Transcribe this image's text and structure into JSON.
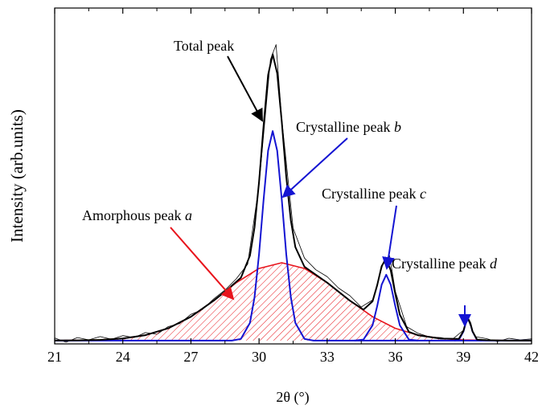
{
  "chart_data": {
    "type": "line",
    "xlabel": "2θ (°)",
    "ylabel": "Intensity (arb.units)",
    "xlim": [
      21,
      42
    ],
    "xticks": [
      21,
      24,
      27,
      30,
      33,
      36,
      39,
      42
    ],
    "ylim": [
      -1,
      100
    ],
    "annotations": [
      {
        "text": "Total peak"
      },
      {
        "text": "Crystalline peak",
        "letter": "b"
      },
      {
        "text": "Crystalline peak",
        "letter": "c"
      },
      {
        "text": "Crystalline peak",
        "letter": "d"
      },
      {
        "text": "Amorphous peak",
        "letter": "a"
      }
    ],
    "series": [
      {
        "color": "#000000",
        "width": 0.8,
        "x": [
          21,
          21.5,
          22,
          22.5,
          23,
          23.5,
          24,
          24.5,
          25,
          25.5,
          26,
          26.5,
          27,
          27.5,
          28,
          28.5,
          29,
          29.5,
          30,
          30.5,
          30.75,
          31,
          31.5,
          32,
          32.5,
          33,
          33.5,
          34,
          34.5,
          35,
          35.5,
          35.75,
          36,
          36.5,
          37,
          37.5,
          38,
          38.5,
          39,
          39.2,
          39.5,
          40,
          40.5,
          41,
          41.5,
          42
        ],
        "values": [
          0.8,
          -0.5,
          0.9,
          0.2,
          1.2,
          0.4,
          1.5,
          0.9,
          2.4,
          1.9,
          4.2,
          5.1,
          7.9,
          9.3,
          12.5,
          15.2,
          18.6,
          23.0,
          46.8,
          84.5,
          89,
          66.5,
          33.8,
          24.8,
          21.3,
          19.2,
          15.8,
          13.5,
          10.1,
          12.2,
          24.1,
          25.5,
          14.8,
          4.2,
          2.2,
          1.1,
          0.9,
          0.3,
          3.1,
          6.3,
          1.2,
          0.6,
          -0.3,
          0.7,
          0.2,
          0.5
        ]
      },
      {
        "color": "#e8141c",
        "width": 1.6,
        "hatch": true,
        "x": [
          21,
          22,
          23,
          24,
          25,
          26,
          27,
          28,
          29,
          30,
          31,
          32,
          33,
          34,
          35,
          36,
          37,
          38,
          39,
          40,
          41,
          42
        ],
        "values": [
          0.01,
          0.06,
          0.21,
          0.63,
          1.63,
          3.68,
          7.17,
          12.0,
          17.4,
          21.7,
          23.4,
          21.7,
          17.4,
          12.0,
          7.17,
          3.68,
          1.63,
          0.63,
          0.21,
          0.06,
          0.01,
          0
        ]
      },
      {
        "color": "#1414d2",
        "width": 2,
        "x": [
          21,
          28.8,
          29.2,
          29.6,
          29.8,
          30.0,
          30.2,
          30.4,
          30.6,
          30.8,
          31.0,
          31.2,
          31.4,
          31.6,
          32.0,
          32.4,
          42
        ],
        "values": [
          0,
          0,
          0.5,
          5.3,
          13.0,
          25.9,
          42.4,
          57.1,
          63,
          57.1,
          42.4,
          25.9,
          13.0,
          5.3,
          0.5,
          0,
          0
        ]
      },
      {
        "color": "#1414d2",
        "width": 2,
        "x": [
          34.2,
          34.6,
          35.0,
          35.2,
          35.4,
          35.6,
          35.8,
          36.0,
          36.2,
          36.6,
          37.0
        ],
        "values": [
          0,
          0.3,
          4.6,
          10.3,
          16.8,
          19.8,
          16.8,
          10.3,
          4.6,
          0.3,
          0
        ]
      },
      {
        "color": "#1414d2",
        "width": 2,
        "x": [
          38.6,
          38.8,
          39.0,
          39.1,
          39.2,
          39.3,
          39.4,
          39.6,
          39.8
        ],
        "values": [
          0,
          0.2,
          2.7,
          5.2,
          6.5,
          5.2,
          2.7,
          0.2,
          0
        ]
      },
      {
        "color": "#000000",
        "width": 2,
        "x": [
          21,
          22,
          23,
          24,
          25,
          26,
          27,
          28,
          28.5,
          29.2,
          29.6,
          29.8,
          30.0,
          30.2,
          30.4,
          30.6,
          30.8,
          31.0,
          31.2,
          31.4,
          31.6,
          32.0,
          33,
          34,
          34.6,
          35.0,
          35.2,
          35.4,
          35.6,
          35.8,
          36.0,
          36.2,
          36.6,
          37,
          38,
          38.8,
          39.0,
          39.1,
          39.2,
          39.3,
          39.4,
          39.6,
          40,
          41,
          42
        ],
        "values": [
          0.01,
          0.06,
          0.21,
          0.63,
          1.63,
          3.68,
          7.17,
          12.0,
          14.7,
          18.9,
          25.5,
          34.0,
          47.6,
          64.7,
          79.9,
          86.1,
          80.4,
          65.8,
          49.2,
          36.1,
          28.1,
          22.2,
          17.4,
          12.0,
          9.3,
          11.8,
          16.6,
          22.4,
          24.7,
          21.1,
          14.0,
          7.8,
          2.6,
          1.6,
          0.6,
          0.5,
          2.9,
          5.4,
          6.7,
          5.3,
          2.8,
          0.3,
          0.1,
          0,
          0
        ]
      }
    ]
  }
}
